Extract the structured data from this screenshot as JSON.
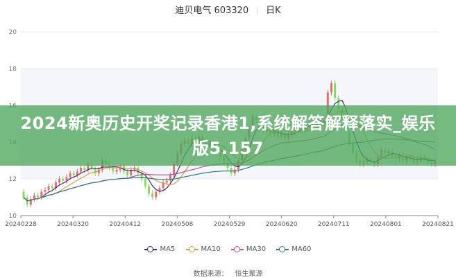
{
  "header": {
    "stock": "迪贝电气 603320",
    "period": "日K"
  },
  "banner": {
    "text": "2024新奥历史开奖记录香港1,系统解答解释落实_娱乐版5.157"
  },
  "source": {
    "label": "数据来源：",
    "value": "恒生聚源"
  },
  "colors": {
    "up": "#e07070",
    "down": "#86dc5c",
    "MA5": "#3b2a7a",
    "MA10": "#d99a4a",
    "MA30": "#b8509a",
    "MA60": "#2e7b7b"
  },
  "chart_data": {
    "type": "candlestick",
    "title": "迪贝电气 603320 日K",
    "ylim": [
      10,
      20
    ],
    "yticks": [
      "10",
      "12",
      "14",
      "16",
      "18",
      "20"
    ],
    "xticks": [
      "20240228",
      "20240320",
      "20240412",
      "20240508",
      "20240529",
      "20240620",
      "20240711",
      "20240801",
      "20240821"
    ],
    "grid": true,
    "legend_placement": "bottom",
    "legend": [
      "MA5",
      "MA10",
      "MA30",
      "MA60"
    ],
    "close": [
      11.0,
      10.6,
      10.9,
      11.1,
      11.0,
      11.3,
      11.4,
      11.6,
      11.5,
      11.8,
      12.0,
      11.9,
      12.1,
      12.3,
      12.2,
      12.4,
      12.6,
      12.5,
      12.8,
      12.6,
      12.3,
      12.5,
      13.0,
      12.8,
      12.6,
      12.4,
      12.5,
      12.7,
      12.4,
      12.2,
      12.5,
      12.6,
      12.3,
      12.0,
      11.6,
      11.2,
      11.0,
      11.3,
      11.5,
      11.8,
      11.9,
      12.2,
      12.8,
      13.4,
      13.9,
      14.1,
      13.9,
      14.2,
      14.0,
      14.3,
      14.1,
      13.8,
      13.9,
      13.6,
      13.4,
      13.2,
      12.9,
      12.6,
      12.3,
      12.5,
      13.0,
      13.6,
      14.2,
      14.8,
      15.4,
      15.2,
      14.9,
      14.6,
      14.7,
      14.4,
      14.6,
      14.3,
      14.5,
      14.2,
      14.4,
      14.6,
      14.8,
      15.0,
      14.7,
      14.9,
      15.1,
      15.3,
      14.8,
      15.2,
      15.0,
      16.7,
      17.2,
      16.4,
      15.8,
      15.3,
      14.6,
      13.9,
      13.4,
      13.0,
      12.8,
      12.9,
      13.1,
      13.0,
      12.8,
      13.2,
      13.6,
      13.4,
      13.5,
      13.2,
      13.1,
      13.3,
      13.0,
      13.2,
      13.1,
      12.9,
      13.0,
      13.2,
      13.1,
      12.9,
      12.8,
      13.0
    ]
  }
}
